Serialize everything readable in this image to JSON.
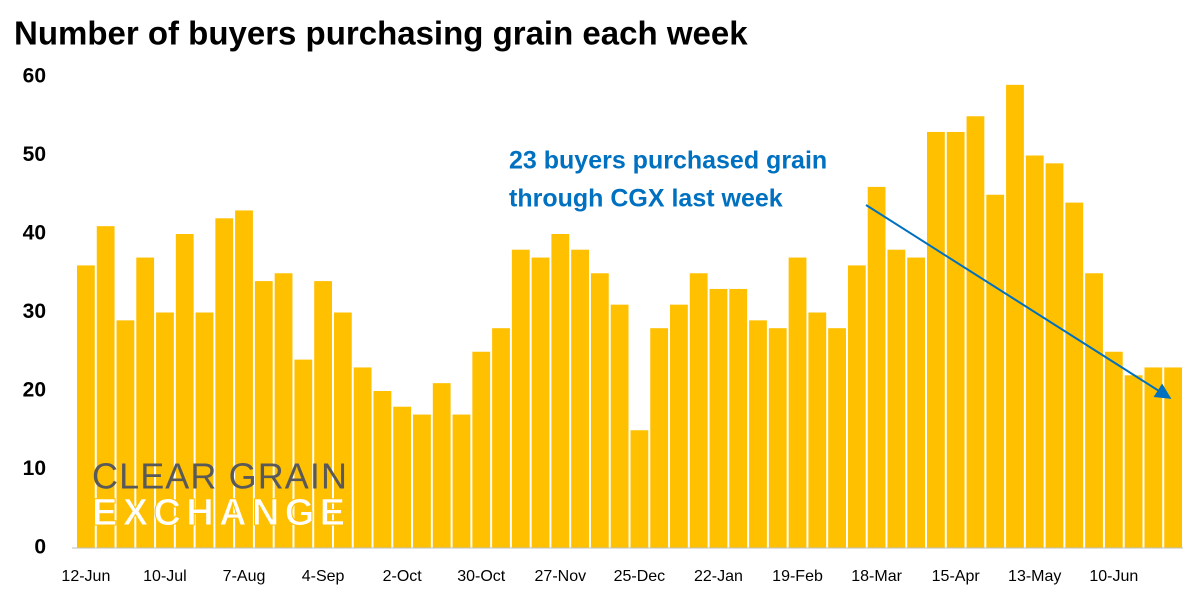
{
  "chart_data": {
    "type": "bar",
    "title": "Number of buyers purchasing grain each week",
    "categories": [
      "12-Jun",
      null,
      null,
      null,
      "10-Jul",
      null,
      null,
      null,
      "7-Aug",
      null,
      null,
      null,
      "4-Sep",
      null,
      null,
      null,
      "2-Oct",
      null,
      null,
      null,
      "30-Oct",
      null,
      null,
      null,
      "27-Nov",
      null,
      null,
      null,
      "25-Dec",
      null,
      null,
      null,
      "22-Jan",
      null,
      null,
      null,
      "19-Feb",
      null,
      null,
      null,
      "18-Mar",
      null,
      null,
      null,
      "15-Apr",
      null,
      null,
      null,
      "13-May",
      null,
      null,
      null,
      "10-Jun",
      null,
      null,
      null
    ],
    "values": [
      36,
      41,
      29,
      37,
      30,
      40,
      30,
      42,
      43,
      34,
      35,
      24,
      34,
      30,
      23,
      20,
      18,
      17,
      21,
      17,
      25,
      28,
      38,
      37,
      40,
      38,
      35,
      31,
      15,
      28,
      31,
      35,
      33,
      33,
      29,
      28,
      37,
      30,
      28,
      36,
      46,
      38,
      37,
      53,
      53,
      55,
      45,
      59,
      50,
      49,
      44,
      35,
      25,
      22,
      23,
      23
    ],
    "color": "#FFC000",
    "ylim": [
      0,
      60
    ],
    "yticks": [
      0,
      10,
      20,
      30,
      40,
      50,
      60
    ],
    "grid": false,
    "annotation": [
      "23 buyers purchased grain",
      "through CGX last week"
    ],
    "annotation_color": "#0070C0",
    "logo": [
      "CLEAR GRAIN",
      "EXCHANGE"
    ]
  }
}
